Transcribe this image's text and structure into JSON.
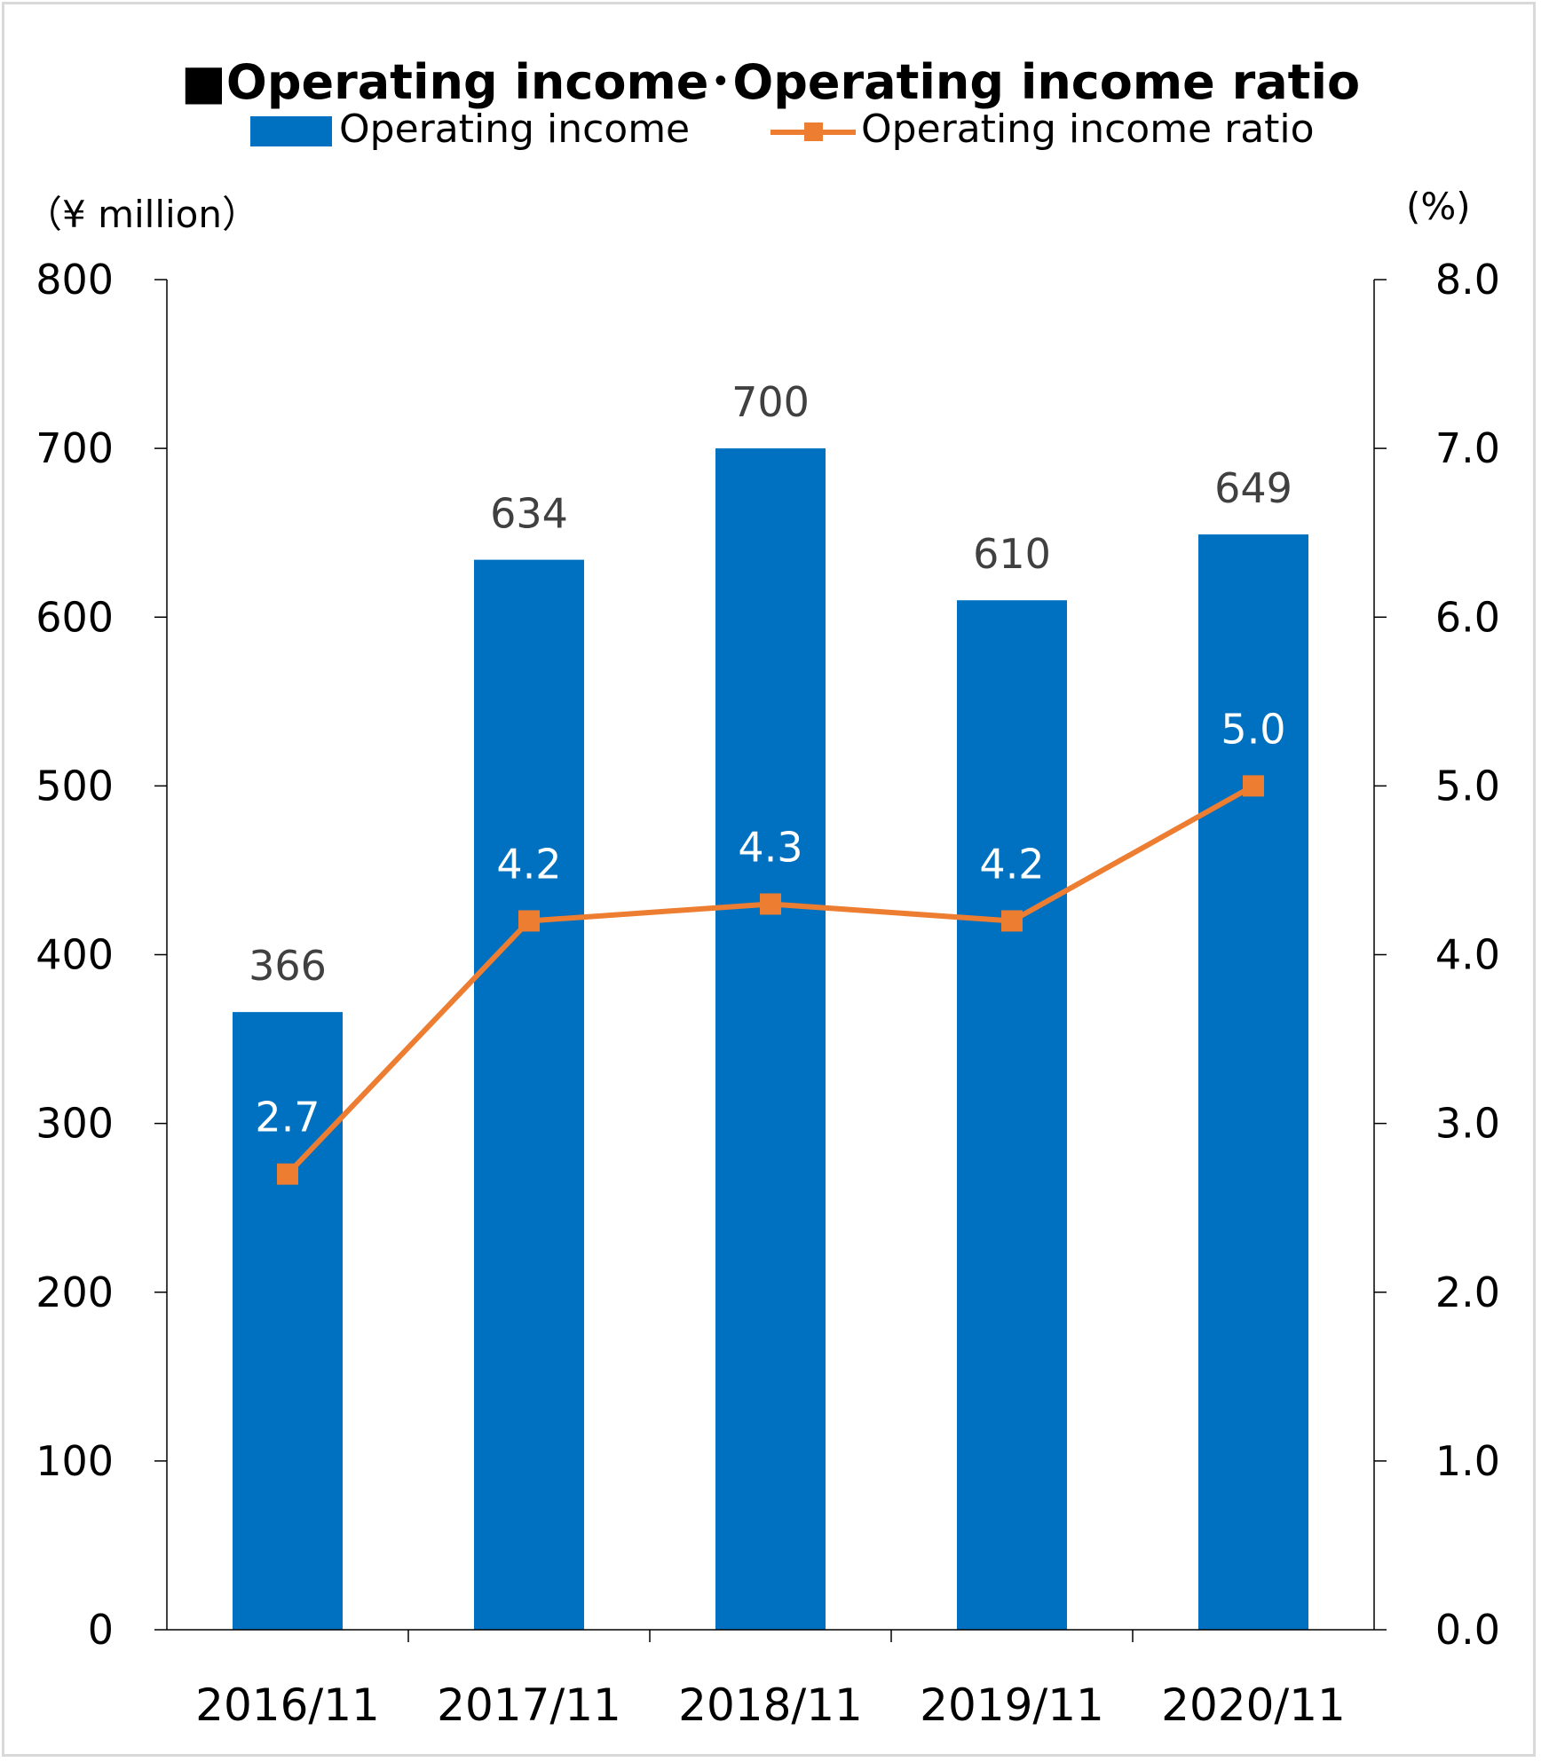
{
  "title": {
    "square": "■",
    "left": "Operating income",
    "separator": "･",
    "right": "Operating income ratio"
  },
  "legend": {
    "bar_label": "Operating income",
    "line_label": "Operating income ratio"
  },
  "units": {
    "left": "（¥ million）",
    "right": "(%)"
  },
  "colors": {
    "bar": "#0070c0",
    "line": "#ed7d31",
    "bar_value_label": "#404040",
    "line_value_label": "#ffffff"
  },
  "chart_data": {
    "type": "bar",
    "categories": [
      "2016/11",
      "2017/11",
      "2018/11",
      "2019/11",
      "2020/11"
    ],
    "series": [
      {
        "name": "Operating income",
        "type": "bar",
        "axis": "left",
        "values": [
          366,
          634,
          700,
          610,
          649
        ]
      },
      {
        "name": "Operating income ratio",
        "type": "line",
        "axis": "right",
        "values": [
          2.7,
          4.2,
          4.3,
          4.2,
          5.0
        ]
      }
    ],
    "bar_labels": [
      "366",
      "634",
      "700",
      "610",
      "649"
    ],
    "line_labels": [
      "2.7",
      "4.2",
      "4.3",
      "4.2",
      "5.0"
    ],
    "y_left": {
      "range": [
        0,
        800
      ],
      "ticks": [
        "0",
        "100",
        "200",
        "300",
        "400",
        "500",
        "600",
        "700",
        "800"
      ]
    },
    "y_right": {
      "range": [
        0,
        8
      ],
      "ticks": [
        "0.0",
        "1.0",
        "2.0",
        "3.0",
        "4.0",
        "5.0",
        "6.0",
        "7.0",
        "8.0"
      ]
    },
    "grid": false,
    "legend_position": "top"
  }
}
